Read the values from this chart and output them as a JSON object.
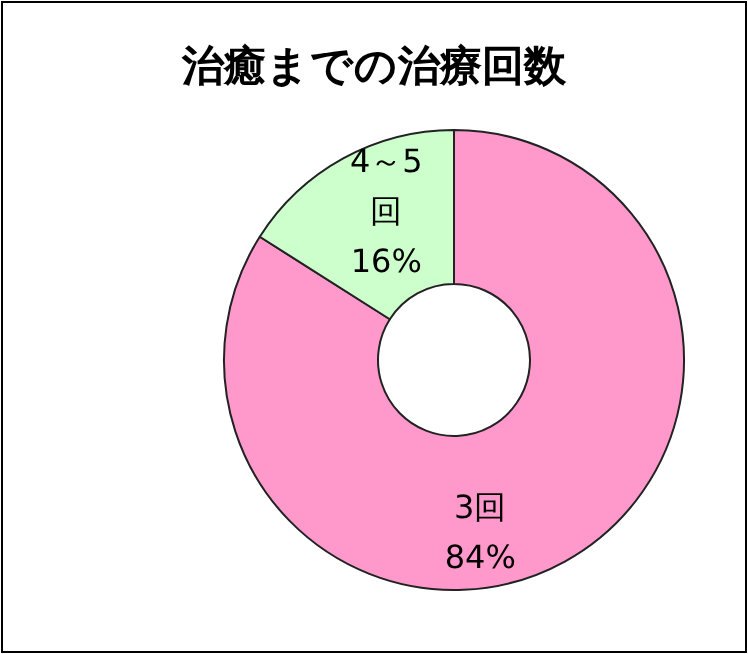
{
  "chart_data": {
    "type": "donut",
    "title": "治癒までの治療回数",
    "categories": [
      "3回",
      "4～5回"
    ],
    "values": [
      84,
      16
    ],
    "colors": [
      "#ff99cc",
      "#ccffcc"
    ],
    "value_labels": [
      "84%",
      "16%"
    ]
  }
}
